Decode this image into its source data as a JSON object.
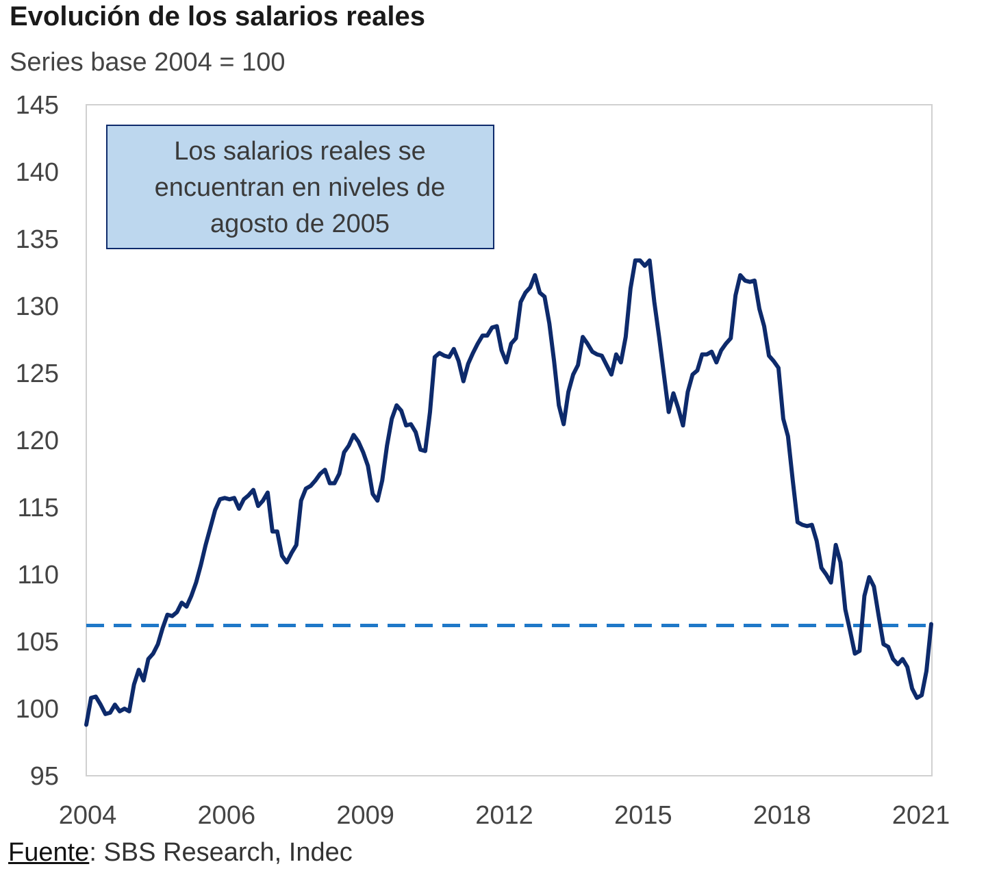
{
  "chart_data": {
    "type": "line",
    "title": "Evolución de los salarios reales",
    "subtitle": "Series base 2004 = 100",
    "source_label": "Fuente",
    "source_text": ": SBS Research, Indec",
    "annotation": [
      "Los salarios reales se",
      "encuentran en niveles de",
      "agosto de 2005"
    ],
    "x_tick_labels": [
      "2004",
      "2006",
      "2009",
      "2012",
      "2015",
      "2018",
      "2021"
    ],
    "y_ticks": [
      95,
      100,
      105,
      110,
      115,
      120,
      125,
      130,
      135,
      140,
      145
    ],
    "ylim": [
      95,
      145
    ],
    "reference_line": {
      "value": 106.2,
      "style": "dashed"
    },
    "colors": {
      "line": "#0d2a6b",
      "reference": "#1f78c8",
      "annotation_fill": "#bdd7ee",
      "annotation_border": "#0d2a6b"
    },
    "grid": false,
    "series": [
      {
        "values": [
          98.8,
          100.8,
          100.9,
          100.3,
          99.6,
          99.7,
          100.3,
          99.8,
          100,
          99.8,
          101.8,
          102.9,
          102.1,
          103.7,
          104.1,
          104.8,
          106,
          107,
          106.9,
          107.2,
          107.9,
          107.6,
          108.4,
          109.4,
          110.7,
          112.2,
          113.5,
          114.8,
          115.6,
          115.7,
          115.6,
          115.7,
          114.9,
          115.6,
          115.9,
          116.3,
          115.1,
          115.5,
          116.1,
          113.2,
          113.2,
          111.4,
          110.9,
          111.6,
          112.2,
          115.5,
          116.4,
          116.6,
          117,
          117.5,
          117.8,
          116.8,
          116.8,
          117.5,
          119.1,
          119.6,
          120.4,
          119.9,
          119.1,
          118.1,
          116,
          115.5,
          117,
          119.6,
          121.6,
          122.6,
          122.2,
          121.1,
          121.2,
          120.6,
          119.3,
          119.2,
          122.1,
          126.2,
          126.5,
          126.3,
          126.2,
          126.8,
          125.9,
          124.4,
          125.7,
          126.5,
          127.2,
          127.8,
          127.8,
          128.4,
          128.5,
          126.7,
          125.8,
          127.2,
          127.6,
          130.3,
          131,
          131.4,
          132.3,
          131,
          130.7,
          128.7,
          125.9,
          122.6,
          121.2,
          123.6,
          124.9,
          125.6,
          127.7,
          127.2,
          126.6,
          126.4,
          126.3,
          125.6,
          124.9,
          126.4,
          125.8,
          127.7,
          131.3,
          133.4,
          133.4,
          133,
          133.4,
          130.3,
          127.7,
          124.9,
          122.1,
          123.5,
          122.4,
          121.1,
          123.6,
          124.9,
          125.2,
          126.4,
          126.4,
          126.6,
          125.8,
          126.7,
          127.2,
          127.6,
          130.8,
          132.3,
          131.9,
          131.8,
          131.9,
          129.8,
          128.5,
          126.3,
          125.9,
          125.4,
          121.6,
          120.3,
          117,
          113.9,
          113.7,
          113.6,
          113.7,
          112.5,
          110.5,
          110,
          109.4,
          112.2,
          110.9,
          107.4,
          105.8,
          104.1,
          104.3,
          108.4,
          109.8,
          109.1,
          106.9,
          104.8,
          104.6,
          103.7,
          103.3,
          103.7,
          103.1,
          101.5,
          100.8,
          101,
          102.8,
          106.3
        ]
      }
    ]
  }
}
